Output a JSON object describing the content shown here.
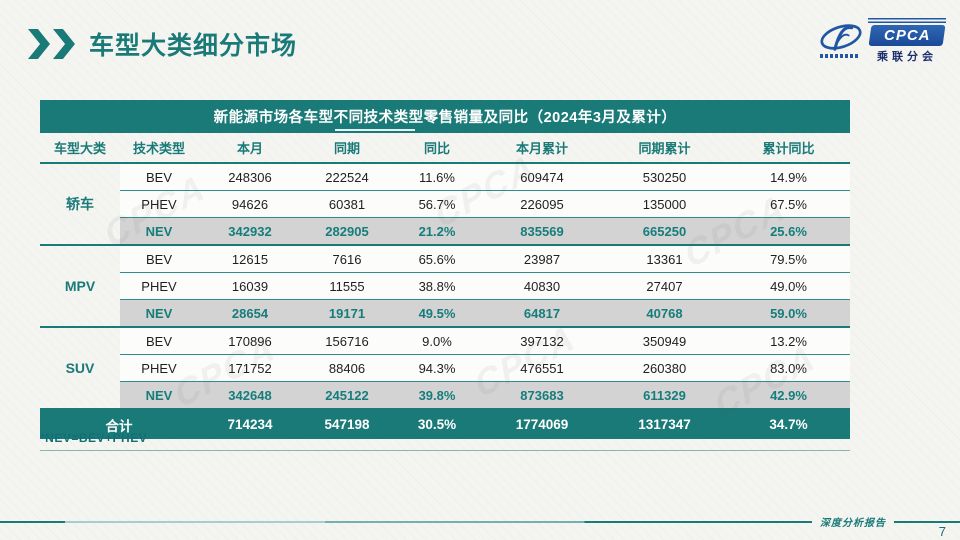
{
  "page": {
    "title": "车型大类细分市场",
    "footnote": "*NEV=BEV+PHEV",
    "footer_text": "深度分析报告",
    "page_number": "7"
  },
  "logo": {
    "name": "CPCA",
    "subtitle": "乘联分会"
  },
  "table": {
    "title": "新能源市场各车型不同技术类型零售销量及同比（2024年3月及累计）",
    "columns": [
      "车型大类",
      "技术类型",
      "本月",
      "同期",
      "同比",
      "本月累计",
      "同期累计",
      "累计同比"
    ],
    "groups": [
      {
        "label": "轿车",
        "rows": [
          {
            "type": "BEV",
            "highlight": false,
            "values": [
              "248306",
              "222524",
              "11.6%",
              "609474",
              "530250",
              "14.9%"
            ]
          },
          {
            "type": "PHEV",
            "highlight": false,
            "values": [
              "94626",
              "60381",
              "56.7%",
              "226095",
              "135000",
              "67.5%"
            ]
          },
          {
            "type": "NEV",
            "highlight": true,
            "values": [
              "342932",
              "282905",
              "21.2%",
              "835569",
              "665250",
              "25.6%"
            ]
          }
        ]
      },
      {
        "label": "MPV",
        "rows": [
          {
            "type": "BEV",
            "highlight": false,
            "values": [
              "12615",
              "7616",
              "65.6%",
              "23987",
              "13361",
              "79.5%"
            ]
          },
          {
            "type": "PHEV",
            "highlight": false,
            "values": [
              "16039",
              "11555",
              "38.8%",
              "40830",
              "27407",
              "49.0%"
            ]
          },
          {
            "type": "NEV",
            "highlight": true,
            "values": [
              "28654",
              "19171",
              "49.5%",
              "64817",
              "40768",
              "59.0%"
            ]
          }
        ]
      },
      {
        "label": "SUV",
        "rows": [
          {
            "type": "BEV",
            "highlight": false,
            "values": [
              "170896",
              "156716",
              "9.0%",
              "397132",
              "350949",
              "13.2%"
            ]
          },
          {
            "type": "PHEV",
            "highlight": false,
            "values": [
              "171752",
              "88406",
              "94.3%",
              "476551",
              "260380",
              "83.0%"
            ]
          },
          {
            "type": "NEV",
            "highlight": true,
            "values": [
              "342648",
              "245122",
              "39.8%",
              "873683",
              "611329",
              "42.9%"
            ]
          }
        ]
      }
    ],
    "total": {
      "label": "合计",
      "values": [
        "714234",
        "547198",
        "30.5%",
        "1774069",
        "1317347",
        "34.7%"
      ]
    }
  },
  "colors": {
    "teal": "#1A7A78",
    "highlight_bg": "#D3D3D3",
    "logo_blue": "#2156A5"
  }
}
